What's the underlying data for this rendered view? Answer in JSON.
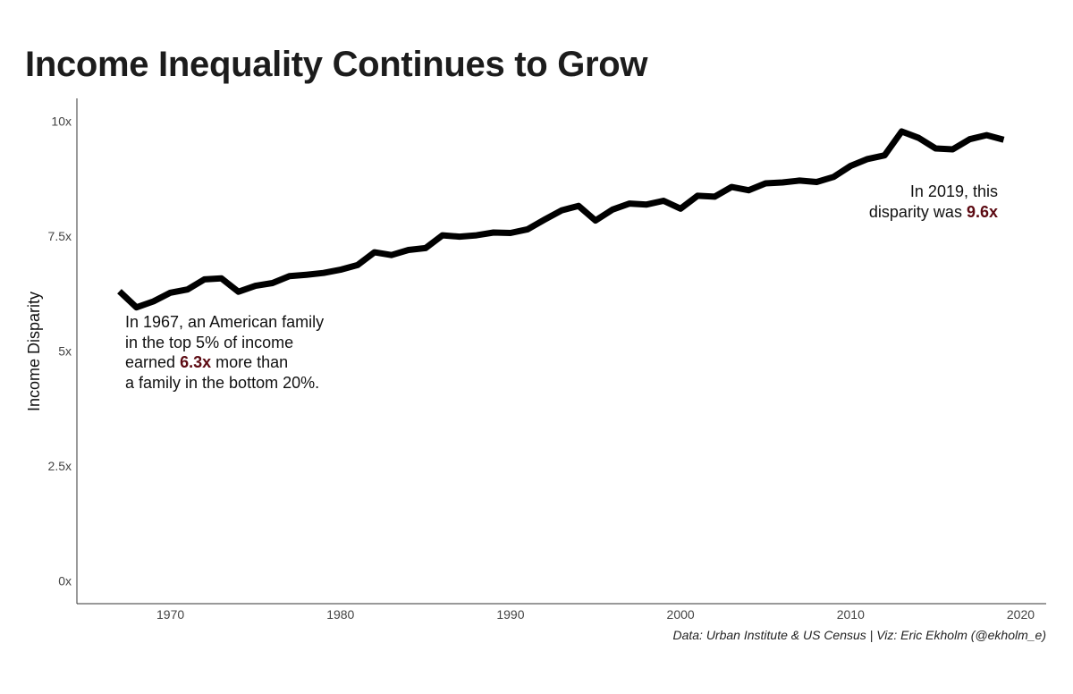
{
  "chart_data": {
    "type": "line",
    "title": "Income Inequality Continues to Grow",
    "ylabel": "Income Disparity",
    "xlabel": "",
    "xlim": [
      1964.5,
      2021.5
    ],
    "ylim": [
      -0.5,
      10.5
    ],
    "x_ticks": [
      1970,
      1980,
      1990,
      2000,
      2010,
      2020
    ],
    "y_ticks": [
      0,
      2.5,
      5,
      7.5,
      10
    ],
    "y_tick_labels": [
      "0x",
      "2.5x",
      "5x",
      "7.5x",
      "10x"
    ],
    "grid": false,
    "line_color": "#000000",
    "highlight_color": "#5c0a12",
    "x": [
      1967,
      1968,
      1969,
      1970,
      1971,
      1972,
      1973,
      1974,
      1975,
      1976,
      1977,
      1978,
      1979,
      1980,
      1981,
      1982,
      1983,
      1984,
      1985,
      1986,
      1987,
      1988,
      1989,
      1990,
      1991,
      1992,
      1993,
      1994,
      1995,
      1996,
      1997,
      1998,
      1999,
      2000,
      2001,
      2002,
      2003,
      2004,
      2005,
      2006,
      2007,
      2008,
      2009,
      2010,
      2011,
      2012,
      2013,
      2014,
      2015,
      2016,
      2017,
      2018,
      2019
    ],
    "values": [
      6.3,
      5.95,
      6.08,
      6.27,
      6.34,
      6.56,
      6.58,
      6.29,
      6.42,
      6.48,
      6.63,
      6.66,
      6.7,
      6.77,
      6.87,
      7.15,
      7.09,
      7.2,
      7.24,
      7.52,
      7.49,
      7.52,
      7.58,
      7.57,
      7.65,
      7.86,
      8.06,
      8.16,
      7.84,
      8.08,
      8.21,
      8.19,
      8.27,
      8.1,
      8.38,
      8.36,
      8.57,
      8.5,
      8.65,
      8.67,
      8.71,
      8.68,
      8.79,
      9.03,
      9.18,
      9.26,
      9.78,
      9.64,
      9.41,
      9.39,
      9.61,
      9.7,
      9.6
    ]
  },
  "annotations": {
    "start": {
      "line1": "In 1967, an American family",
      "line2": "in the top 5% of income",
      "line3_pre": "earned ",
      "line3_value": "6.3x",
      "line3_post": " more than",
      "line4": "a family in the bottom 20%."
    },
    "end": {
      "line1": "In 2019, this",
      "line2_pre": "disparity was ",
      "line2_value": "9.6x"
    }
  },
  "caption": "Data: Urban Institute & US Census | Viz: Eric Ekholm (@ekholm_e)"
}
